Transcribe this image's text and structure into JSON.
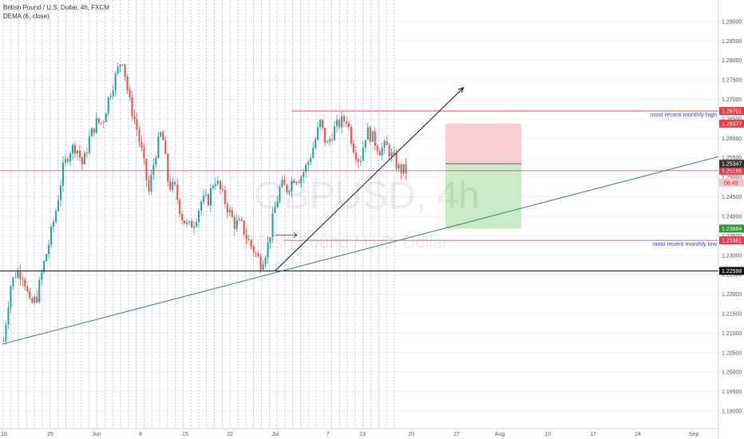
{
  "header": {
    "title": "British Pound / U.S. Dollar, 4h, FXCM",
    "indicator": "DEMA (6, close)"
  },
  "watermark": {
    "symbol": "GBPUSD, 4h",
    "name": "British Pound / U.S. Dollar"
  },
  "colors": {
    "up": "#26a69a",
    "down": "#ef5350",
    "grid": "#7b8fd6",
    "red_line": "#f23645",
    "trend": "#2e7d6b",
    "black_line": "#000000",
    "green_tag": "#1e9e2e"
  },
  "chart_data": {
    "type": "candlestick",
    "symbol": "GBPUSD",
    "timeframe": "4h",
    "ylim": [
      1.1855,
      1.2955
    ],
    "y_ticks": [
      "1.29000",
      "1.28500",
      "1.28000",
      "1.27500",
      "1.27000",
      "1.26500",
      "1.26000",
      "1.25500",
      "1.25000",
      "1.24500",
      "1.24000",
      "1.23500",
      "1.23000",
      "1.22500",
      "1.22000",
      "1.21500",
      "1.21000",
      "1.20500",
      "1.20000",
      "1.19500",
      "1.19000"
    ],
    "x_labels": [
      "18",
      "25",
      "Jun",
      "8",
      "15",
      "22",
      "Jul",
      "7",
      "13",
      "20",
      "27",
      "Aug",
      "10",
      "17",
      "24",
      "Sep"
    ],
    "price_path": [
      [
        1.208,
        1.222
      ],
      [
        1.226,
        1.225
      ],
      [
        1.217,
        1.219
      ],
      [
        1.227,
        1.234
      ],
      [
        1.242,
        1.252
      ],
      [
        1.257,
        1.258
      ],
      [
        1.253,
        1.26
      ],
      [
        1.264,
        1.264
      ],
      [
        1.271,
        1.276
      ],
      [
        1.281,
        1.27
      ],
      [
        1.264,
        1.256
      ],
      [
        1.246,
        1.256
      ],
      [
        1.262,
        1.248
      ],
      [
        1.247,
        1.24
      ],
      [
        1.237,
        1.239
      ],
      [
        1.244,
        1.244
      ],
      [
        1.25,
        1.246
      ],
      [
        1.242,
        1.238
      ],
      [
        1.238,
        1.234
      ],
      [
        1.231,
        1.228
      ],
      [
        1.232,
        1.241
      ],
      [
        1.248,
        1.247
      ],
      [
        1.25,
        1.25
      ],
      [
        1.253,
        1.258
      ],
      [
        1.264,
        1.258
      ],
      [
        1.262,
        1.264
      ],
      [
        1.265,
        1.258
      ],
      [
        1.254,
        1.262
      ],
      [
        1.26,
        1.257
      ],
      [
        1.258,
        1.255
      ],
      [
        1.252,
        1.2517
      ]
    ],
    "levels": [
      {
        "price": 1.26701,
        "label": "1.26701",
        "style": "red",
        "annotation": "most recent monthly high"
      },
      {
        "price": 1.25169,
        "label": "1.25169",
        "style": "red"
      },
      {
        "price": 1.23381,
        "label": "1.23381",
        "style": "red",
        "annotation": "most recent monthly low"
      },
      {
        "price": 1.22598,
        "label": "1.22598",
        "style": "black"
      }
    ],
    "price_tags": [
      {
        "price": 1.26377,
        "label": "1.26377",
        "color": "#f23645"
      },
      {
        "price": 1.25347,
        "label": "1.25347",
        "color": "#333333"
      },
      {
        "price": 1.23684,
        "label": "1.23684",
        "color": "#1e9e2e"
      }
    ],
    "countdown": "06:49",
    "trendlines": [
      {
        "from": [
          0,
          1.2072
        ],
        "to": [
          1.0,
          1.2553
        ]
      },
      {
        "from": [
          0.383,
          1.226
        ],
        "to": [
          0.645,
          1.273
        ],
        "arrow": true
      }
    ],
    "position": {
      "entry": 1.25347,
      "stop": 1.26377,
      "target": 1.23684
    }
  }
}
